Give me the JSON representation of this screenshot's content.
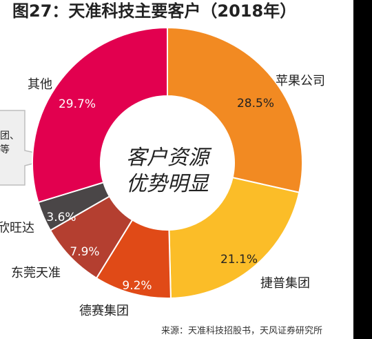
{
  "title": "图27：天准科技主要客户（2018年）",
  "source": "来源：天准科技招股书，天风证券研究所",
  "center_text": [
    "客户资源",
    "优势明显"
  ],
  "callout_lines": [
    "团、",
    "等"
  ],
  "chart_data": {
    "type": "donut",
    "title": "图27：天准科技主要客户（2018年）",
    "slices": [
      {
        "name": "苹果公司",
        "value": 28.5,
        "label": "28.5%",
        "color": "#f28a22"
      },
      {
        "name": "捷普集团",
        "value": 21.1,
        "label": "21.1%",
        "color": "#fbbd28"
      },
      {
        "name": "德赛集团",
        "value": 9.2,
        "label": "9.2%",
        "color": "#e04a17"
      },
      {
        "name": "东莞天准",
        "value": 7.9,
        "label": "7.9%",
        "color": "#b43f30"
      },
      {
        "name": "欣旺达",
        "value": 3.6,
        "label": "3.6%",
        "color": "#4a4647"
      },
      {
        "name": "其他",
        "value": 29.7,
        "label": "29.7%",
        "color": "#e2004f"
      }
    ]
  },
  "colors": {
    "label_dark": "#222222",
    "label_light": "#ffffff",
    "callout_fill": "#efefef",
    "callout_stroke": "#bdbdbd"
  }
}
